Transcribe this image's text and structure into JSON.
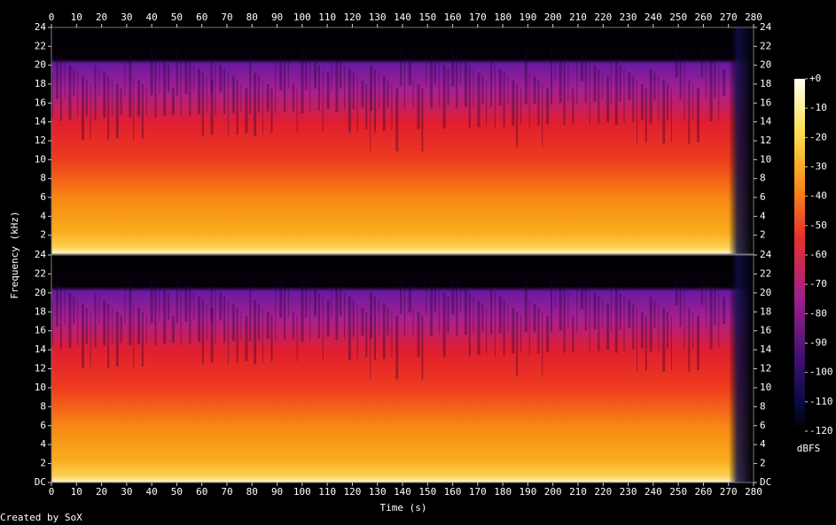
{
  "chart_data": {
    "type": "spectrogram",
    "xlabel": "Time (s)",
    "ylabel": "Frequency (kHz)",
    "footer": "Created by SoX",
    "xlim": [
      0,
      280
    ],
    "xticks": [
      0,
      10,
      20,
      30,
      40,
      50,
      60,
      70,
      80,
      90,
      100,
      110,
      120,
      130,
      140,
      150,
      160,
      170,
      180,
      190,
      200,
      210,
      220,
      230,
      240,
      250,
      260,
      270,
      280
    ],
    "panels": [
      {
        "ylim": [
          0,
          24
        ],
        "yticks": [
          2,
          4,
          6,
          8,
          10,
          12,
          14,
          16,
          18,
          20,
          22,
          24
        ]
      },
      {
        "ylim": [
          0,
          24
        ],
        "yticks": [
          {
            "value": 0,
            "label": "DC"
          },
          2,
          4,
          6,
          8,
          10,
          12,
          14,
          16,
          18,
          20,
          22,
          24
        ]
      }
    ],
    "colorbar": {
      "label": "dBFS",
      "lim": [
        -120,
        0
      ],
      "ticks": [
        {
          "value": 0,
          "label": "+0"
        },
        -10,
        -20,
        -30,
        -40,
        -50,
        -60,
        -70,
        -80,
        -90,
        -100,
        -110,
        -120
      ]
    }
  }
}
